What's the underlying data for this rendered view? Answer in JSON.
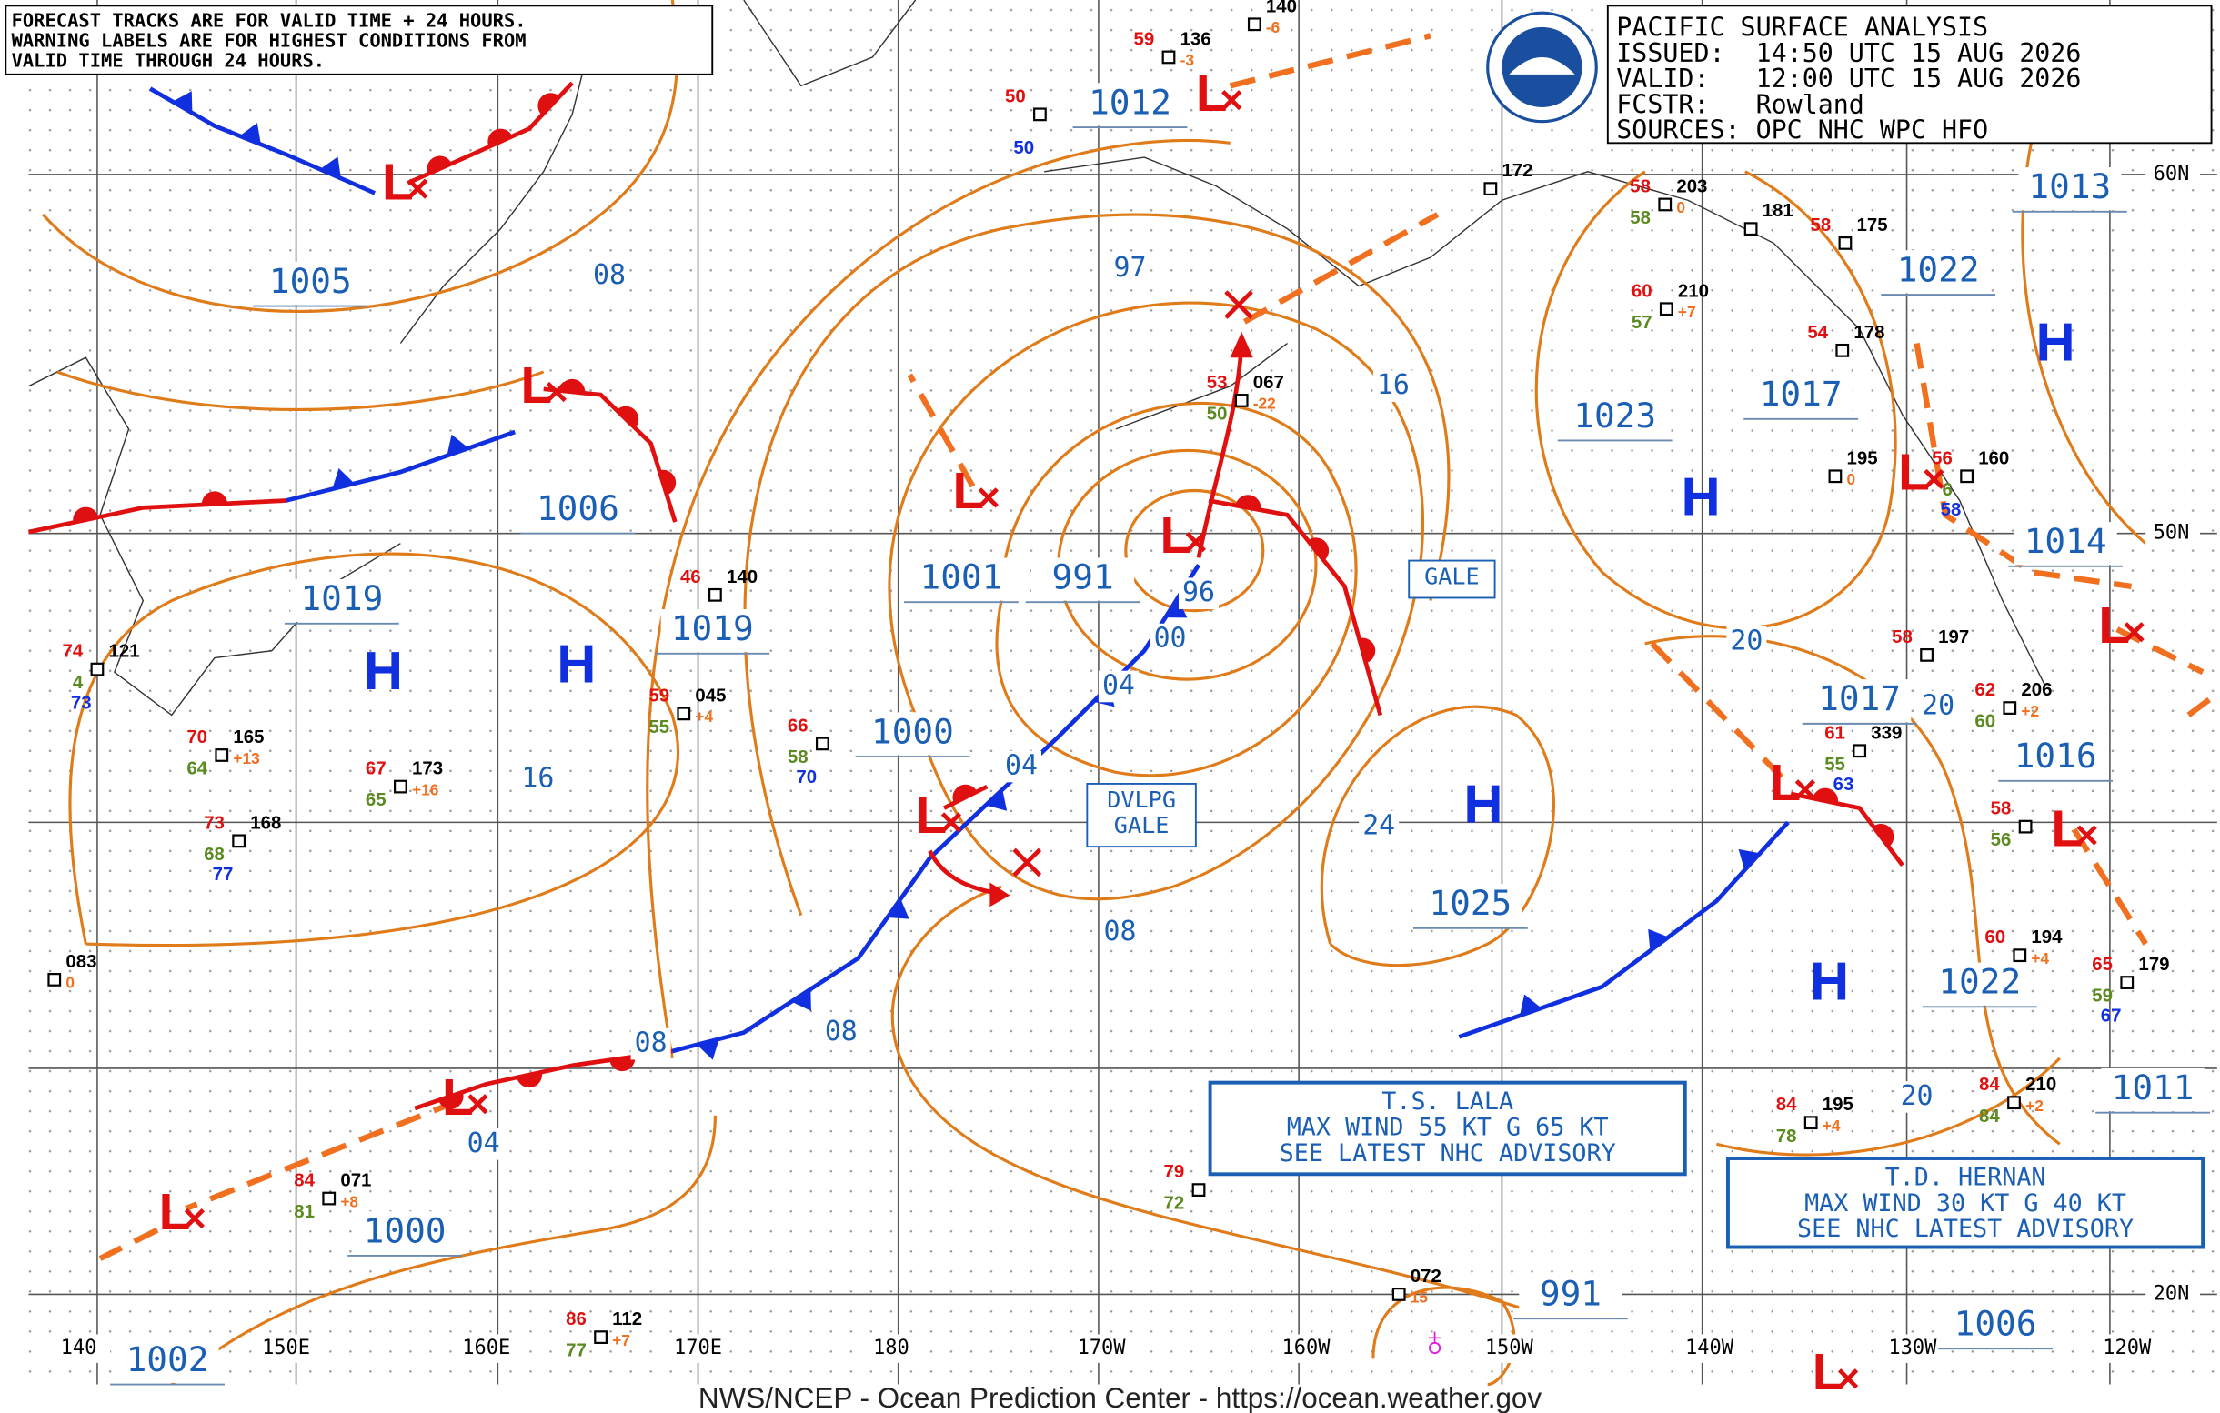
{
  "notice": [
    "FORECAST TRACKS ARE FOR VALID TIME + 24 HOURS.",
    "WARNING LABELS ARE FOR HIGHEST CONDITIONS FROM",
    "VALID TIME THROUGH 24 HOURS."
  ],
  "title_block": [
    "PACIFIC SURFACE ANALYSIS",
    "ISSUED:  14:50 UTC 15 AUG 2026",
    "VALID:   12:00 UTC 15 AUG 2026",
    "FCSTR:   Rowland",
    "SOURCES: OPC NHC WPC HFO"
  ],
  "footer": "NWS/NCEP - Ocean Prediction Center - https://ocean.weather.gov",
  "lat_labels": [
    "60N",
    "50N",
    "20N"
  ],
  "lon_labels": [
    "140",
    "150E",
    "160E",
    "170E",
    "180",
    "170W",
    "160W",
    "150W",
    "140W",
    "130W",
    "120W"
  ],
  "isobar_labels": [
    "1012",
    "1005",
    "08",
    "97",
    "1006",
    "1019",
    "1001",
    "991",
    "1019",
    "96",
    "00",
    "04",
    "1000",
    "04",
    "16",
    "24",
    "08",
    "08",
    "08",
    "04",
    "1000",
    "1002",
    "1025",
    "991",
    "1023",
    "16",
    "1017",
    "1013",
    "1022",
    "1014",
    "1016",
    "1017",
    "20",
    "20",
    "1022",
    "1011",
    "20",
    "1006"
  ],
  "highs": [
    "H",
    "H",
    "H",
    "H",
    "H",
    "H"
  ],
  "lows": [
    "L",
    "L",
    "L",
    "L",
    "L",
    "L",
    "L",
    "L",
    "L",
    "L",
    "L",
    "L",
    "L"
  ],
  "warnings": [
    {
      "lines": [
        "GALE"
      ]
    },
    {
      "lines": [
        "DVLPG",
        "GALE"
      ]
    },
    {
      "lines": [
        "T.S. LALA",
        "MAX WIND 55 KT G 65 KT",
        "SEE LATEST NHC ADVISORY"
      ]
    },
    {
      "lines": [
        "T.D. HERNAN",
        "MAX WIND 30 KT G 40 KT",
        "SEE NHC LATEST ADVISORY"
      ]
    }
  ],
  "stations": [
    {
      "temp": "59",
      "pressure": "136",
      "tendency": "-3"
    },
    {
      "pressure": "140",
      "tendency": "-6"
    },
    {
      "temp": "50",
      "other": "50"
    },
    {
      "pressure": "172"
    },
    {
      "temp": "58",
      "pressure": "203",
      "tendency": "0",
      "dew": "58"
    },
    {
      "pressure": "181"
    },
    {
      "temp": "58",
      "pressure": "175"
    },
    {
      "temp": "60",
      "pressure": "210",
      "tendency": "+7",
      "dew": "57"
    },
    {
      "temp": "54",
      "pressure": "178"
    },
    {
      "temp": "53",
      "pressure": "067",
      "tendency": "-22",
      "dew": "50"
    },
    {
      "pressure": "195",
      "tendency": "0"
    },
    {
      "temp": "56",
      "pressure": "160",
      "dew": "6",
      "other": "58"
    },
    {
      "temp": "46",
      "pressure": "140"
    },
    {
      "temp": "74",
      "pressure": "121",
      "dew": "4",
      "other": "73"
    },
    {
      "temp": "59",
      "pressure": "045",
      "tendency": "+4",
      "dew": "55"
    },
    {
      "temp": "66",
      "dew": "58",
      "other": "70"
    },
    {
      "temp": "58",
      "pressure": "197"
    },
    {
      "temp": "62",
      "pressure": "206",
      "tendency": "+2",
      "dew": "60"
    },
    {
      "temp": "70",
      "pressure": "165",
      "tendency": "+13",
      "dew": "64"
    },
    {
      "temp": "67",
      "pressure": "173",
      "tendency": "+16",
      "dew": "65"
    },
    {
      "temp": "61",
      "pressure": "339",
      "dew": "55",
      "other": "63"
    },
    {
      "temp": "73",
      "pressure": "168",
      "dew": "68",
      "other": "77"
    },
    {
      "temp": "58",
      "dew": "56"
    },
    {
      "pressure": "083",
      "tendency": "0"
    },
    {
      "temp": "60",
      "pressure": "194",
      "tendency": "+4"
    },
    {
      "temp": "65",
      "pressure": "179",
      "dew": "59",
      "other": "67"
    },
    {
      "temp": "84",
      "pressure": "195",
      "tendency": "+4",
      "dew": "78"
    },
    {
      "temp": "84",
      "pressure": "210",
      "tendency": "+2",
      "dew": "84"
    },
    {
      "temp": "84",
      "pressure": "071",
      "tendency": "+8",
      "dew": "81"
    },
    {
      "temp": "79",
      "dew": "72"
    },
    {
      "pressure": "072",
      "tendency": "15"
    },
    {
      "temp": "86",
      "pressure": "112",
      "tendency": "+7",
      "dew": "77"
    }
  ]
}
